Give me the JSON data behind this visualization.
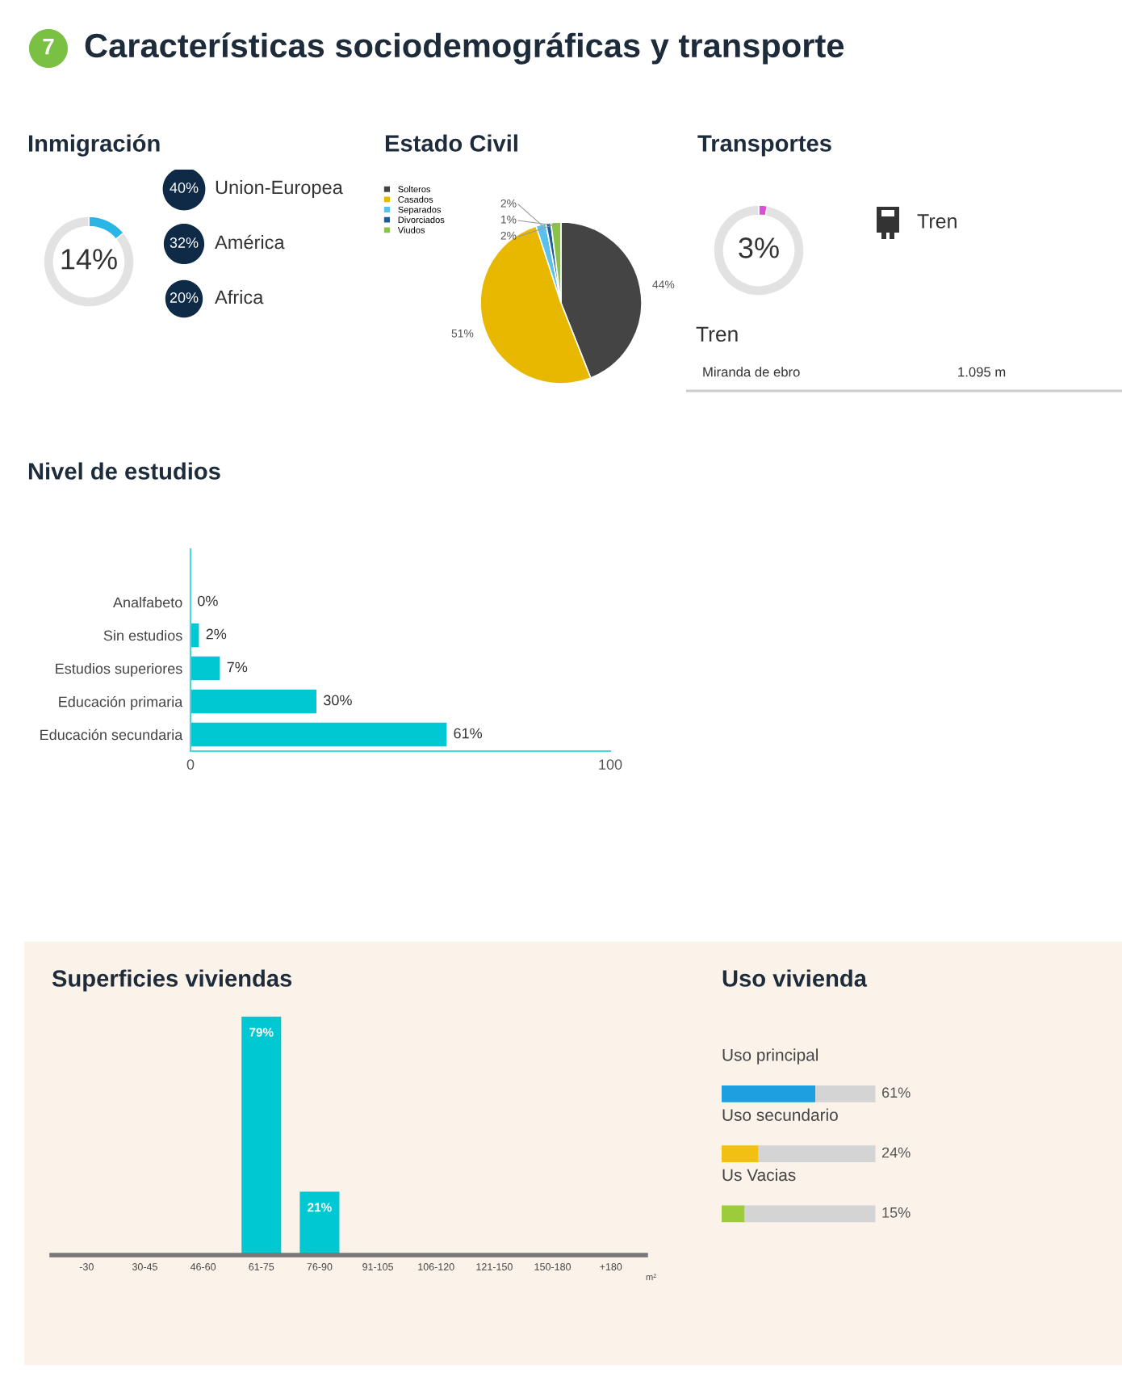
{
  "chart_data": [
    {
      "type": "other",
      "title": "Características sociodemográficas y transporte",
      "annotations": [
        "7"
      ]
    },
    {
      "type": "donut",
      "title": "Inmigración",
      "categories": [
        null,
        null
      ],
      "values": [
        14,
        86
      ],
      "colors": [
        "#29b6e6",
        "#e2e2e2"
      ],
      "value_labels": [
        "14%",
        null
      ]
    },
    {
      "type": "other",
      "categories": [
        "Union-Europea",
        "América",
        "Africa"
      ],
      "values": [
        40,
        32,
        20
      ],
      "value_labels": [
        "40%",
        "32%",
        "20%"
      ],
      "colors": [
        "#0f2a47",
        "#0f2a47",
        "#0f2a47"
      ]
    },
    {
      "type": "pie",
      "title": "Estado Civil",
      "categories": [
        "Solteros",
        "Casados",
        "Separados",
        "Divorciados",
        "Viudos"
      ],
      "values": [
        44,
        51,
        2,
        1,
        2
      ],
      "colors": [
        "#444444",
        "#e8b800",
        "#5bc0eb",
        "#1f5c99",
        "#8bc34a"
      ],
      "value_labels": [
        "44%",
        "51%",
        "2%",
        "1%",
        "2%"
      ],
      "legend": "top left"
    },
    {
      "type": "donut",
      "title": "Transportes",
      "categories": [
        null,
        null
      ],
      "values": [
        3,
        97
      ],
      "colors": [
        "#d94fd9",
        "#e2e2e2"
      ],
      "value_labels": [
        "3%",
        null
      ]
    },
    {
      "type": "other",
      "annotations": [
        "Tren",
        "Tren",
        "Miranda de ebro",
        "1.095 m"
      ]
    },
    {
      "type": "bar",
      "orientation": "horizontal",
      "title": "Nivel de estudios",
      "categories": [
        "Analfabeto",
        "Sin estudios",
        "Estudios superiores",
        "Educación primaria",
        "Educación secundaria"
      ],
      "values": [
        0,
        2,
        7,
        30,
        61
      ],
      "colors": [
        "#00c8d2",
        "#00c8d2",
        "#00c8d2",
        "#00c8d2",
        "#00c8d2"
      ],
      "value_labels": [
        "0%",
        "2%",
        "7%",
        "30%",
        "61%"
      ],
      "xlim": [
        0,
        100
      ],
      "xticks": [
        0,
        100
      ]
    },
    {
      "type": "bar",
      "title": "Superficies viviendas",
      "categories": [
        "-30",
        "30-45",
        "46-60",
        "61-75",
        "76-90",
        "91-105",
        "106-120",
        "121-150",
        "150-180",
        "+180"
      ],
      "values": [
        0,
        0,
        0,
        79,
        21,
        0,
        0,
        0,
        0,
        0
      ],
      "colors": [
        "#00c8d2",
        "#00c8d2",
        "#00c8d2",
        "#00c8d2",
        "#00c8d2",
        "#00c8d2",
        "#00c8d2",
        "#00c8d2",
        "#00c8d2",
        "#00c8d2"
      ],
      "value_labels": [
        null,
        null,
        null,
        "79%",
        "21%",
        null,
        null,
        null,
        null,
        null
      ],
      "annotations": [
        "m²"
      ]
    },
    {
      "type": "bar",
      "orientation": "horizontal",
      "stacked": true,
      "title": "Uso vivienda",
      "categories": [
        "Uso principal",
        "Uso secundario",
        "Us Vacias"
      ],
      "series": [
        {
          "colors": [
            "#1ea0e0",
            "#f2c010",
            "#9ccc3c"
          ],
          "values": [
            61,
            24,
            15
          ],
          "value_labels": [
            "61%",
            "24%",
            "15%"
          ]
        },
        {
          "color": "#d4d4d4",
          "values": [
            39,
            76,
            85
          ]
        }
      ]
    }
  ]
}
